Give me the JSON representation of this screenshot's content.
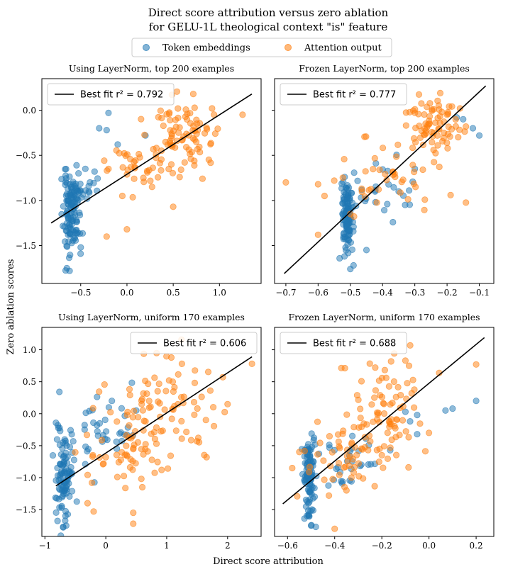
{
  "chart_data": {
    "title_lines": [
      "Direct score attribution versus zero ablation",
      "for GELU-1L theological context \"is\" feature"
    ],
    "xlabel": "Direct score attribution",
    "ylabel": "Zero ablation scores",
    "legend": {
      "placement": "top-center",
      "entries": [
        {
          "label": "Token embeddings",
          "color": "#1f77b4"
        },
        {
          "label": "Attention output",
          "color": "#ff7f0e"
        }
      ]
    },
    "fit_line_color": "#000000",
    "panels": [
      {
        "type": "scatter",
        "title": "Using LayerNorm, top 200 examples",
        "fit_label": "Best fit r² = 0.792",
        "legend_placement": "upper-left",
        "xlim": [
          -0.92,
          1.45
        ],
        "ylim": [
          -1.92,
          0.35
        ],
        "xticks": [
          -0.5,
          0.0,
          0.5,
          1.0
        ],
        "xtick_labels": [
          "−0.5",
          "0.0",
          "0.5",
          "1.0"
        ],
        "yticks": [
          -1.5,
          -1.0,
          -0.5,
          0.0
        ],
        "ytick_labels": [
          "−1.5",
          "−1.0",
          "−0.5",
          "0.0"
        ],
        "show_yticklabels": true,
        "fit_line": [
          [
            -0.82,
            -1.25
          ],
          [
            1.35,
            0.18
          ]
        ],
        "token_cloud": [
          {
            "cx": -0.6,
            "cy": -1.15,
            "sx": 0.045,
            "sy": 0.22,
            "n": 115
          },
          {
            "cx": -0.52,
            "cy": -0.9,
            "sx": 0.07,
            "sy": 0.08,
            "n": 22
          }
        ],
        "attention_cloud": [
          {
            "cx": 0.6,
            "cy": -0.25,
            "sx": 0.18,
            "sy": 0.2,
            "n": 80
          },
          {
            "cx": 0.2,
            "cy": -0.62,
            "sx": 0.2,
            "sy": 0.17,
            "n": 40
          }
        ],
        "token_extra": [
          [
            -0.2,
            -0.03
          ],
          [
            -0.22,
            -0.22
          ],
          [
            -0.3,
            -0.2
          ],
          [
            -0.1,
            -0.38
          ],
          [
            0.2,
            -0.28
          ],
          [
            -0.35,
            -0.68
          ],
          [
            -0.45,
            -0.65
          ],
          [
            -0.4,
            -0.8
          ],
          [
            -0.5,
            -1.52
          ],
          [
            -0.65,
            -1.75
          ],
          [
            -0.62,
            -1.78
          ]
        ],
        "attention_extra": [
          [
            1.25,
            -0.05
          ],
          [
            0.5,
            -1.07
          ],
          [
            0.0,
            -1.32
          ],
          [
            -0.22,
            -1.4
          ],
          [
            -0.2,
            -0.65
          ],
          [
            0.92,
            0.02
          ],
          [
            -0.05,
            -0.95
          ]
        ],
        "seed": 11
      },
      {
        "type": "scatter",
        "title": "Frozen LayerNorm, top 200 examples",
        "fit_label": "Best fit r² = 0.777",
        "legend_placement": "upper-left",
        "xlim": [
          -0.735,
          -0.055
        ],
        "ylim": [
          -1.92,
          0.35
        ],
        "xticks": [
          -0.7,
          -0.6,
          -0.5,
          -0.4,
          -0.3,
          -0.2,
          -0.1
        ],
        "xtick_labels": [
          "−0.7",
          "−0.6",
          "−0.5",
          "−0.4",
          "−0.3",
          "−0.2",
          "−0.1"
        ],
        "yticks": [
          -1.5,
          -1.0,
          -0.5,
          0.0
        ],
        "ytick_labels": [
          "−1.5",
          "−1.0",
          "−0.5",
          "0.0"
        ],
        "show_yticklabels": false,
        "fit_line": [
          [
            -0.705,
            -1.81
          ],
          [
            -0.08,
            0.27
          ]
        ],
        "token_cloud": [
          {
            "cx": -0.51,
            "cy": -1.17,
            "sx": 0.009,
            "sy": 0.21,
            "n": 110
          },
          {
            "cx": -0.42,
            "cy": -0.92,
            "sx": 0.05,
            "sy": 0.13,
            "n": 25
          }
        ],
        "attention_cloud": [
          {
            "cx": -0.25,
            "cy": -0.2,
            "sx": 0.045,
            "sy": 0.18,
            "n": 75
          },
          {
            "cx": -0.38,
            "cy": -0.7,
            "sx": 0.07,
            "sy": 0.2,
            "n": 40
          }
        ],
        "token_extra": [
          [
            -0.1,
            -0.28
          ],
          [
            -0.12,
            -0.2
          ],
          [
            -0.15,
            -0.1
          ],
          [
            -0.17,
            -0.08
          ],
          [
            -0.3,
            -0.65
          ],
          [
            -0.35,
            -0.9
          ],
          [
            -0.33,
            -1.05
          ],
          [
            -0.45,
            -1.55
          ],
          [
            -0.49,
            -1.72
          ],
          [
            -0.5,
            -1.76
          ]
        ],
        "attention_extra": [
          [
            -0.7,
            -0.8
          ],
          [
            -0.6,
            -0.82
          ],
          [
            -0.55,
            -0.78
          ],
          [
            -0.6,
            -1.38
          ],
          [
            -0.58,
            -0.95
          ],
          [
            -0.5,
            -1.15
          ],
          [
            -0.2,
            -0.05
          ],
          [
            -0.16,
            0.02
          ]
        ],
        "seed": 23
      },
      {
        "type": "scatter",
        "title": "Using LayerNorm, uniform 170 examples",
        "fit_label": "Best fit r² = 0.606",
        "legend_placement": "upper-right",
        "xlim": [
          -1.05,
          2.55
        ],
        "ylim": [
          -1.92,
          1.35
        ],
        "xticks": [
          -1,
          0,
          1,
          2
        ],
        "xtick_labels": [
          "−1",
          "0",
          "1",
          "2"
        ],
        "yticks": [
          -1.5,
          -1.0,
          -0.5,
          0.0,
          0.5,
          1.0
        ],
        "ytick_labels": [
          "−1.5",
          "−1.0",
          "−0.5",
          "0.0",
          "0.5",
          "1.0"
        ],
        "show_yticklabels": true,
        "fit_line": [
          [
            -0.82,
            -1.13
          ],
          [
            2.4,
            0.89
          ]
        ],
        "token_cloud": [
          {
            "cx": -0.68,
            "cy": -0.9,
            "sx": 0.07,
            "sy": 0.4,
            "n": 100
          },
          {
            "cx": 0.0,
            "cy": -0.3,
            "sx": 0.28,
            "sy": 0.28,
            "n": 35
          }
        ],
        "attention_cloud": [
          {
            "cx": 1.0,
            "cy": 0.05,
            "sx": 0.45,
            "sy": 0.38,
            "n": 85
          },
          {
            "cx": 0.35,
            "cy": -0.65,
            "sx": 0.35,
            "sy": 0.22,
            "n": 45
          }
        ],
        "token_extra": [
          [
            0.1,
            0.2
          ],
          [
            0.05,
            0.1
          ],
          [
            -0.7,
            -1.77
          ],
          [
            -0.65,
            -1.75
          ],
          [
            -0.75,
            -0.27
          ],
          [
            0.5,
            0.05
          ]
        ],
        "attention_extra": [
          [
            2.4,
            0.78
          ],
          [
            1.25,
            0.78
          ],
          [
            1.1,
            0.5
          ],
          [
            0.45,
            -1.72
          ],
          [
            0.45,
            -1.55
          ],
          [
            -0.3,
            -1.4
          ],
          [
            -0.2,
            -1.53
          ],
          [
            0.6,
            -1.15
          ],
          [
            2.0,
            0.15
          ]
        ],
        "seed": 37
      },
      {
        "type": "scatter",
        "title": "Frozen LayerNorm, uniform 170 examples",
        "fit_label": "Best fit r² = 0.688",
        "legend_placement": "upper-left",
        "xlim": [
          -0.655,
          0.275
        ],
        "ylim": [
          -1.92,
          1.35
        ],
        "xticks": [
          -0.6,
          -0.4,
          -0.2,
          0.0,
          0.2
        ],
        "xtick_labels": [
          "−0.6",
          "−0.4",
          "−0.2",
          "0.0",
          "0.2"
        ],
        "yticks": [
          -1.5,
          -1.0,
          -0.5,
          0.0,
          0.5,
          1.0
        ],
        "ytick_labels": [
          "−1.5",
          "−1.0",
          "−0.5",
          "0.0",
          "0.5",
          "1.0"
        ],
        "show_yticklabels": false,
        "fit_line": [
          [
            -0.62,
            -1.41
          ],
          [
            0.235,
            1.19
          ]
        ],
        "token_cloud": [
          {
            "cx": -0.51,
            "cy": -1.05,
            "sx": 0.012,
            "sy": 0.32,
            "n": 95
          },
          {
            "cx": -0.35,
            "cy": -0.65,
            "sx": 0.07,
            "sy": 0.22,
            "n": 35
          }
        ],
        "attention_cloud": [
          {
            "cx": -0.2,
            "cy": 0.05,
            "sx": 0.08,
            "sy": 0.42,
            "n": 85
          },
          {
            "cx": -0.38,
            "cy": -0.75,
            "sx": 0.09,
            "sy": 0.25,
            "n": 45
          }
        ],
        "token_extra": [
          [
            0.2,
            0.2
          ],
          [
            0.1,
            0.08
          ],
          [
            0.07,
            0.05
          ],
          [
            -0.1,
            0.03
          ],
          [
            -0.05,
            -0.02
          ],
          [
            -0.48,
            -1.77
          ],
          [
            -0.5,
            -1.75
          ],
          [
            -0.05,
            -0.32
          ],
          [
            -0.08,
            -0.12
          ]
        ],
        "attention_extra": [
          [
            0.2,
            0.77
          ],
          [
            -0.1,
            0.83
          ],
          [
            -0.55,
            -0.6
          ],
          [
            -0.58,
            -0.85
          ],
          [
            -0.4,
            -1.8
          ],
          [
            0.0,
            -0.3
          ],
          [
            -0.2,
            -0.65
          ],
          [
            -0.35,
            -1.2
          ]
        ],
        "seed": 53
      }
    ]
  }
}
